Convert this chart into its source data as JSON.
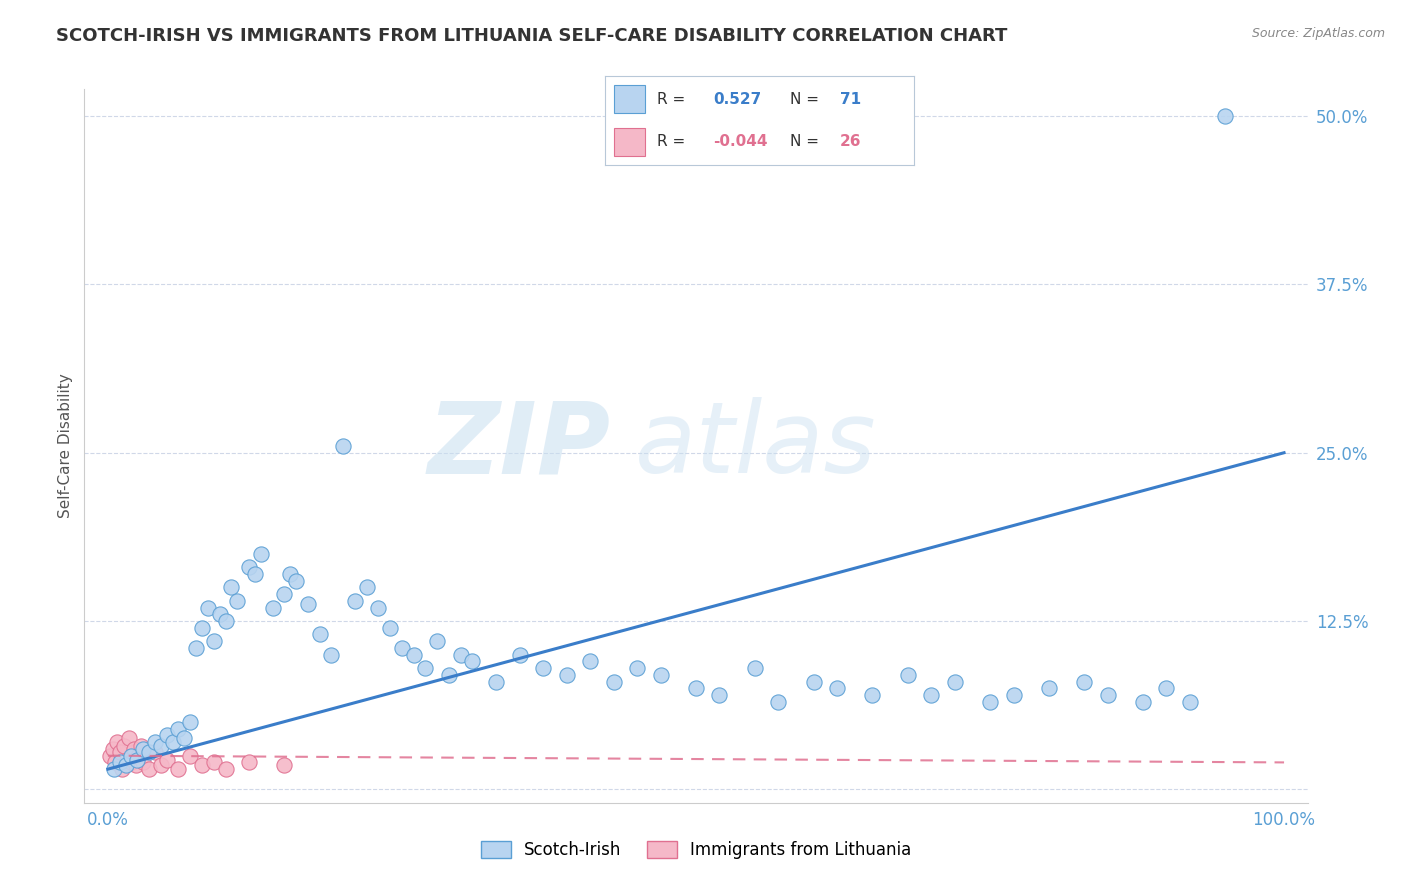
{
  "title": "SCOTCH-IRISH VS IMMIGRANTS FROM LITHUANIA SELF-CARE DISABILITY CORRELATION CHART",
  "source": "Source: ZipAtlas.com",
  "ylabel": "Self-Care Disability",
  "watermark_zip": "ZIP",
  "watermark_atlas": "atlas",
  "scotch_irish": {
    "R": 0.527,
    "N": 71,
    "color": "#b8d4f0",
    "edge_color": "#5a9fd4",
    "line_color": "#3a7dc9",
    "x": [
      0.5,
      1.0,
      1.5,
      2.0,
      2.5,
      3.0,
      3.5,
      4.0,
      4.5,
      5.0,
      5.5,
      6.0,
      6.5,
      7.0,
      7.5,
      8.0,
      8.5,
      9.0,
      9.5,
      10.0,
      10.5,
      11.0,
      12.0,
      12.5,
      13.0,
      14.0,
      15.0,
      15.5,
      16.0,
      17.0,
      18.0,
      19.0,
      20.0,
      21.0,
      22.0,
      23.0,
      24.0,
      25.0,
      26.0,
      27.0,
      28.0,
      29.0,
      30.0,
      31.0,
      33.0,
      35.0,
      37.0,
      39.0,
      41.0,
      43.0,
      45.0,
      47.0,
      50.0,
      52.0,
      55.0,
      57.0,
      60.0,
      62.0,
      65.0,
      68.0,
      70.0,
      72.0,
      75.0,
      77.0,
      80.0,
      83.0,
      85.0,
      88.0,
      90.0,
      92.0,
      95.0
    ],
    "y": [
      1.5,
      2.0,
      1.8,
      2.5,
      2.2,
      3.0,
      2.8,
      3.5,
      3.2,
      4.0,
      3.5,
      4.5,
      3.8,
      5.0,
      10.5,
      12.0,
      13.5,
      11.0,
      13.0,
      12.5,
      15.0,
      14.0,
      16.5,
      16.0,
      17.5,
      13.5,
      14.5,
      16.0,
      15.5,
      13.8,
      11.5,
      10.0,
      25.5,
      14.0,
      15.0,
      13.5,
      12.0,
      10.5,
      10.0,
      9.0,
      11.0,
      8.5,
      10.0,
      9.5,
      8.0,
      10.0,
      9.0,
      8.5,
      9.5,
      8.0,
      9.0,
      8.5,
      7.5,
      7.0,
      9.0,
      6.5,
      8.0,
      7.5,
      7.0,
      8.5,
      7.0,
      8.0,
      6.5,
      7.0,
      7.5,
      8.0,
      7.0,
      6.5,
      7.5,
      6.5,
      50.0
    ]
  },
  "lithuania": {
    "R": -0.044,
    "N": 26,
    "color": "#f5b8c8",
    "edge_color": "#e07090",
    "line_color": "#e07090",
    "x": [
      0.2,
      0.4,
      0.6,
      0.8,
      1.0,
      1.2,
      1.4,
      1.6,
      1.8,
      2.0,
      2.2,
      2.4,
      2.6,
      2.8,
      3.0,
      3.5,
      4.0,
      4.5,
      5.0,
      6.0,
      7.0,
      8.0,
      9.0,
      10.0,
      12.0,
      15.0
    ],
    "y": [
      2.5,
      3.0,
      2.0,
      3.5,
      2.8,
      1.5,
      3.2,
      2.2,
      3.8,
      2.0,
      3.0,
      1.8,
      2.5,
      3.2,
      2.0,
      1.5,
      2.8,
      1.8,
      2.2,
      1.5,
      2.5,
      1.8,
      2.0,
      1.5,
      2.0,
      1.8
    ]
  },
  "line_si_start": 1.5,
  "line_si_end": 25.0,
  "line_lt_start": 2.5,
  "line_lt_end": 2.0,
  "xlim": [
    0,
    100
  ],
  "ylim": [
    0,
    52
  ],
  "yticks": [
    0,
    12.5,
    25.0,
    37.5,
    50.0
  ],
  "xticks": [
    0,
    100
  ],
  "xtick_labels": [
    "0.0%",
    "100.0%"
  ],
  "ytick_labels": [
    "",
    "12.5%",
    "25.0%",
    "37.5%",
    "50.0%"
  ],
  "grid_color": "#d0d8e8",
  "background_color": "#ffffff",
  "title_color": "#333333",
  "title_fontsize": 13,
  "tick_color": "#5a9fd4",
  "legend_title_color": "#3a7dc9",
  "source_color": "#888888"
}
